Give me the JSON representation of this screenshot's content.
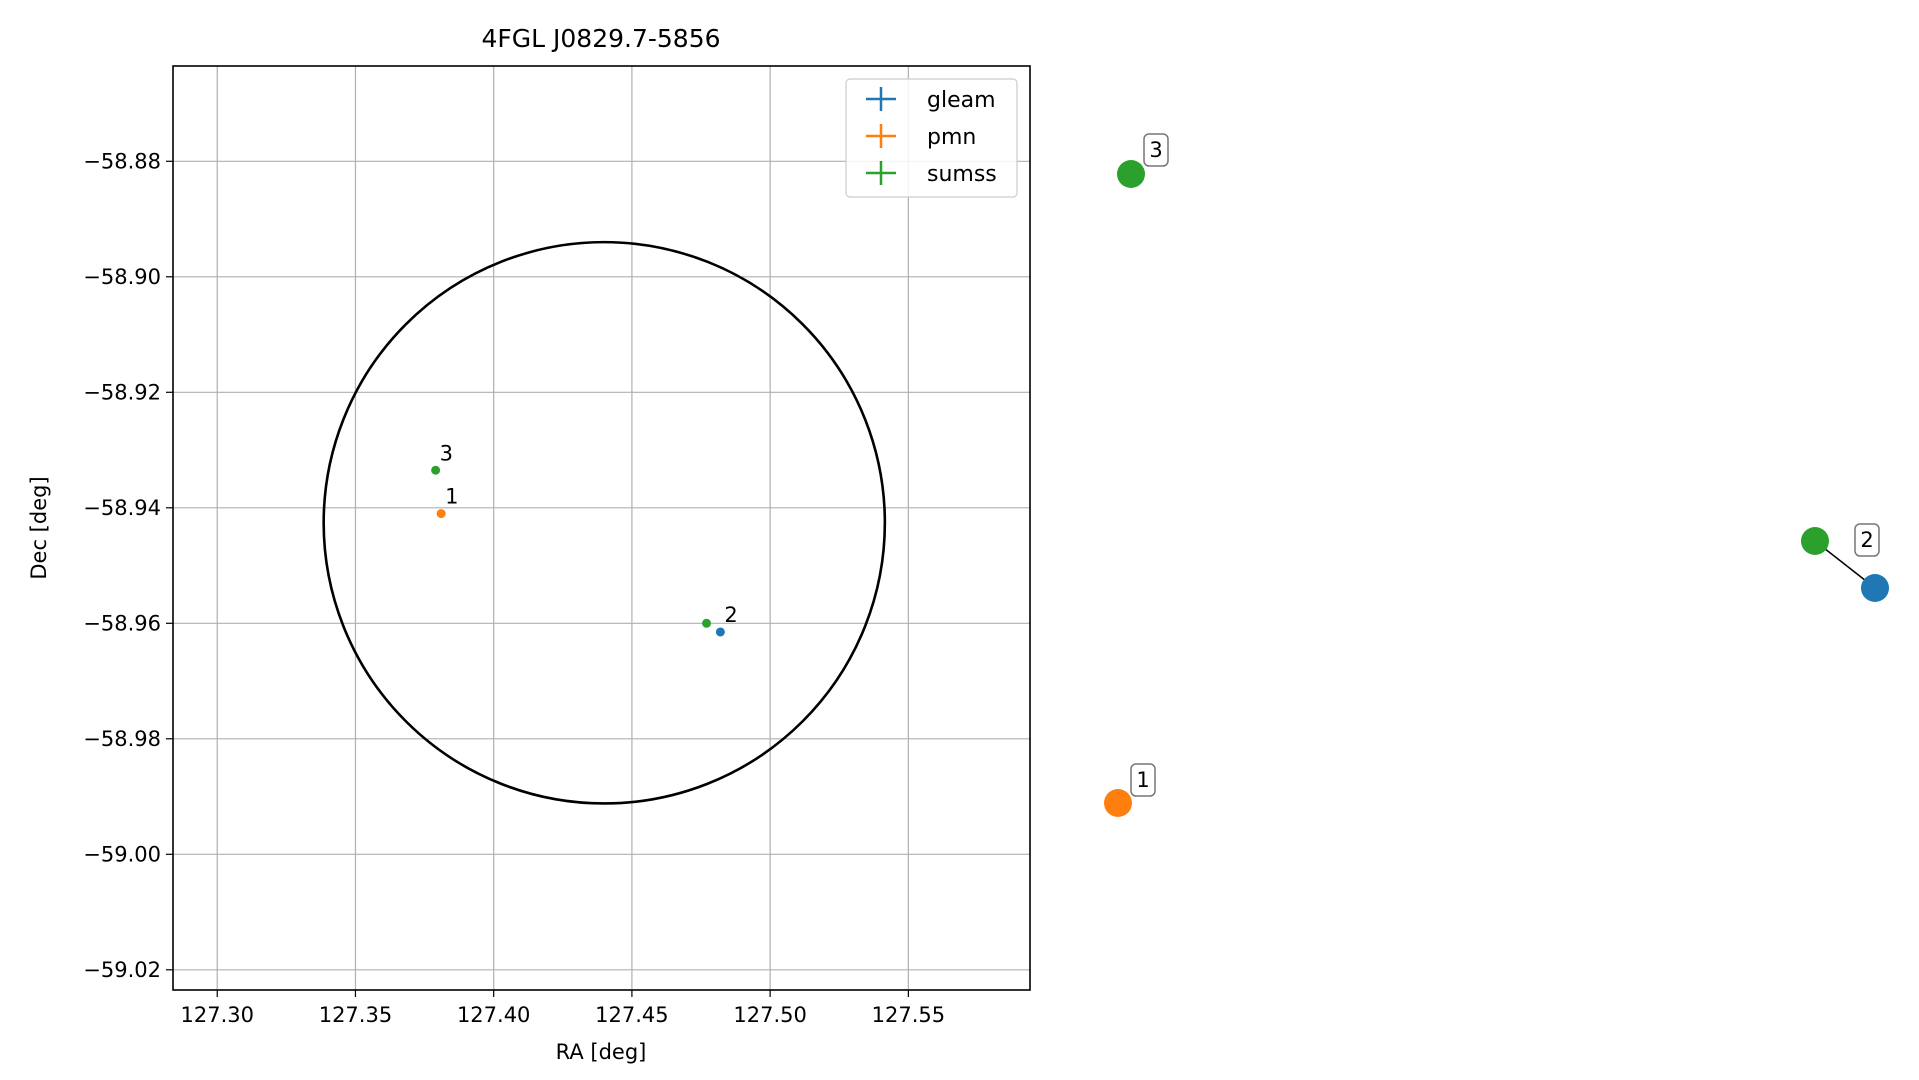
{
  "chart_data": {
    "type": "scatter",
    "title": "4FGL J0829.7-5856",
    "xlabel": "RA [deg]",
    "ylabel": "Dec [deg]",
    "xlim": [
      127.284,
      127.594
    ],
    "ylim": [
      -59.0235,
      -58.8635
    ],
    "xticks": [
      127.3,
      127.35,
      127.4,
      127.45,
      127.5,
      127.55
    ],
    "xtick_labels": [
      "127.30",
      "127.35",
      "127.40",
      "127.45",
      "127.50",
      "127.55"
    ],
    "yticks": [
      -58.88,
      -58.9,
      -58.92,
      -58.94,
      -58.96,
      -58.98,
      -59.0,
      -59.02
    ],
    "ytick_labels": [
      "−58.88",
      "−58.90",
      "−58.92",
      "−58.94",
      "−58.96",
      "−58.98",
      "−59.00",
      "−59.02"
    ],
    "grid": true,
    "legend_position": "top-right",
    "ellipse": {
      "center": [
        127.44,
        -58.9426
      ],
      "semi_axis_ra": 0.1015,
      "semi_axis_dec": 0.0486,
      "color": "#000000"
    },
    "series": [
      {
        "name": "gleam",
        "color": "#1f77b4",
        "points": [
          {
            "x": 127.482,
            "y": -58.9615,
            "label": "2"
          }
        ]
      },
      {
        "name": "pmn",
        "color": "#ff7f0e",
        "points": [
          {
            "x": 127.381,
            "y": -58.941,
            "label": "1"
          }
        ]
      },
      {
        "name": "sumss",
        "color": "#2ca02c",
        "points": [
          {
            "x": 127.379,
            "y": -58.9335,
            "label": "3"
          },
          {
            "x": 127.477,
            "y": -58.96,
            "label": "2"
          }
        ]
      }
    ],
    "side_panel": {
      "markers": [
        {
          "color": "#2ca02c",
          "label": "3",
          "boxed": true
        },
        {
          "color": "#ff7f0e",
          "label": "1",
          "boxed": true
        },
        {
          "color": "#2ca02c",
          "label": "2",
          "boxed": true
        },
        {
          "color": "#1f77b4",
          "label": "",
          "boxed": false
        }
      ]
    }
  }
}
